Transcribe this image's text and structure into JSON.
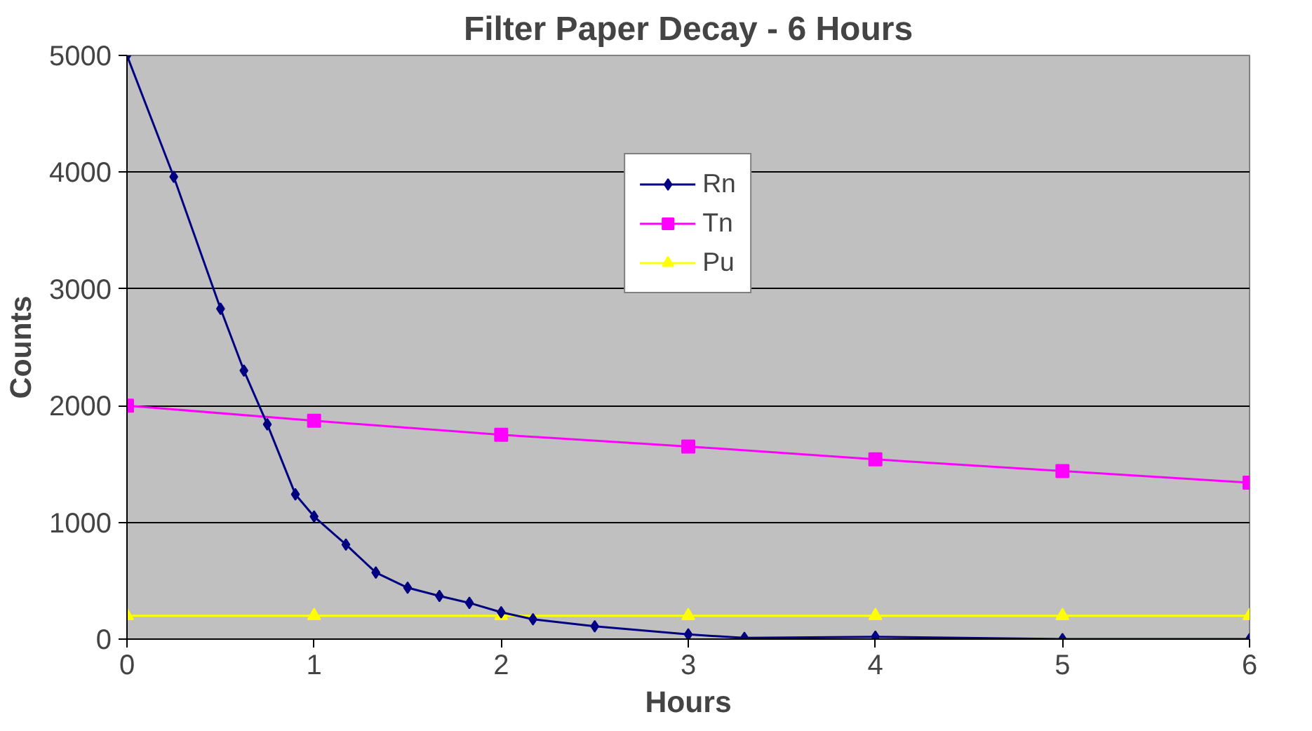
{
  "chart_data": {
    "type": "line",
    "title": "Filter Paper Decay - 6 Hours",
    "xlabel": "Hours",
    "ylabel": "Counts",
    "xlim": [
      0,
      6
    ],
    "xticks": [
      0,
      1,
      2,
      3,
      4,
      5,
      6
    ],
    "ylim": [
      0,
      5000
    ],
    "yticks": [
      0,
      1000,
      2000,
      3000,
      4000,
      5000
    ],
    "grid": "y",
    "legend": "top",
    "line_style": "solid",
    "series": [
      {
        "name": "Rn",
        "color": "#000080",
        "marker": "diamond",
        "x": [
          0,
          0.25,
          0.5,
          0.625,
          0.75,
          0.9,
          1,
          1.17,
          1.33,
          1.5,
          1.67,
          1.83,
          2,
          2.17,
          2.5,
          3,
          3.3,
          4,
          5,
          6
        ],
        "values": [
          5000,
          3960,
          2830,
          2300,
          1840,
          1240,
          1050,
          810,
          570,
          440,
          370,
          310,
          230,
          170,
          110,
          40,
          10,
          20,
          0,
          0
        ]
      },
      {
        "name": "Tn",
        "color": "#ff00ff",
        "marker": "square",
        "x": [
          0,
          1,
          2,
          3,
          4,
          5,
          6
        ],
        "values": [
          2000,
          1870,
          1750,
          1650,
          1540,
          1440,
          1340
        ]
      },
      {
        "name": "Pu",
        "color": "#ffff00",
        "marker": "triangle",
        "x": [
          0,
          1,
          2,
          3,
          4,
          5,
          6
        ],
        "values": [
          200,
          200,
          200,
          200,
          200,
          200,
          200
        ]
      }
    ]
  }
}
